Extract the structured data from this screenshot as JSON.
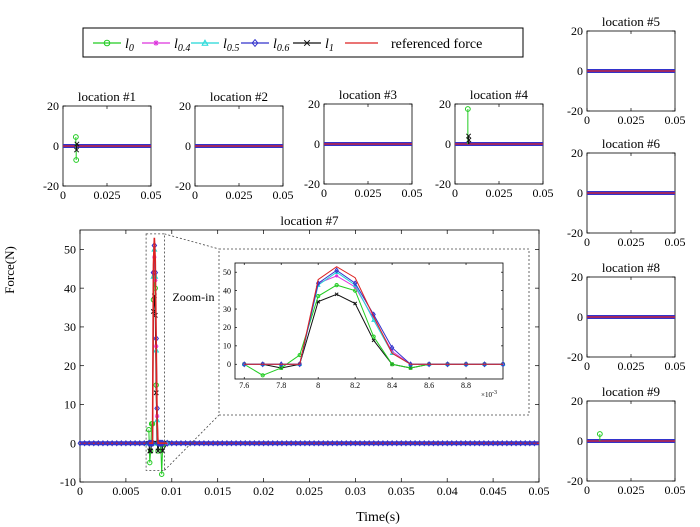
{
  "chart_data": {
    "type": "line",
    "y_axis_label": "Force(N)",
    "x_axis_label": "Time(s)",
    "legend": {
      "placement": "top-left",
      "entries": [
        {
          "label": "l",
          "subscript": "0",
          "color": "#22cc22",
          "marker": "circle"
        },
        {
          "label": "l",
          "subscript": "0.4",
          "color": "#dd33dd",
          "marker": "star"
        },
        {
          "label": "l",
          "subscript": "0.5",
          "color": "#22d8d8",
          "marker": "triangle"
        },
        {
          "label": "l",
          "subscript": "0.6",
          "color": "#3333cc",
          "marker": "diamond"
        },
        {
          "label": "l",
          "subscript": "1",
          "color": "#111111",
          "marker": "x"
        },
        {
          "label": "referenced force",
          "color": "#dd2222",
          "marker": "none"
        }
      ]
    },
    "small_panels": [
      {
        "title": "location #1",
        "xlim": [
          0,
          0.05
        ],
        "ylim": [
          -20,
          20
        ],
        "xticks": [
          "0",
          "0.025",
          "0.05"
        ],
        "yticks": [
          "-20",
          "0",
          "20"
        ],
        "spikes": {
          "l0": [
            4.5,
            -7
          ],
          "l1": [
            -2,
            1
          ]
        }
      },
      {
        "title": "location #2",
        "xlim": [
          0,
          0.05
        ],
        "ylim": [
          -20,
          20
        ],
        "xticks": [
          "0",
          "0.025",
          "0.05"
        ],
        "yticks": [
          "-20",
          "0",
          "20"
        ],
        "spikes": {}
      },
      {
        "title": "location #3",
        "xlim": [
          0,
          0.05
        ],
        "ylim": [
          -20,
          20
        ],
        "xticks": [
          "0",
          "0.025",
          "0.05"
        ],
        "yticks": [
          "-20",
          "0",
          "20"
        ],
        "spikes": {}
      },
      {
        "title": "location #4",
        "xlim": [
          0,
          0.05
        ],
        "ylim": [
          -20,
          20
        ],
        "xticks": [
          "0",
          "0.025",
          "0.05"
        ],
        "yticks": [
          "-20",
          "0",
          "20"
        ],
        "spikes": {
          "l0": [
            17.5
          ],
          "l1": [
            4,
            2
          ]
        }
      },
      {
        "title": "location #5",
        "xlim": [
          0,
          0.05
        ],
        "ylim": [
          -20,
          20
        ],
        "xticks": [
          "0",
          "0.025",
          "0.05"
        ],
        "yticks": [
          "-20",
          "0",
          "20"
        ],
        "spikes": {}
      },
      {
        "title": "location #6",
        "xlim": [
          0,
          0.05
        ],
        "ylim": [
          -20,
          20
        ],
        "xticks": [
          "0",
          "0.025",
          "0.05"
        ],
        "yticks": [
          "-20",
          "0",
          "20"
        ],
        "spikes": {}
      },
      {
        "title": "location #8",
        "xlim": [
          0,
          0.05
        ],
        "ylim": [
          -20,
          20
        ],
        "xticks": [
          "0",
          "0.025",
          "0.05"
        ],
        "yticks": [
          "-20",
          "0",
          "20"
        ],
        "spikes": {}
      },
      {
        "title": "location #9",
        "xlim": [
          0,
          0.05
        ],
        "ylim": [
          -20,
          20
        ],
        "xticks": [
          "0",
          "0.025",
          "0.05"
        ],
        "yticks": [
          "-20",
          "0",
          "20"
        ],
        "spikes": {
          "l0": [
            3.5
          ]
        }
      }
    ],
    "main_panel": {
      "title": "location #7",
      "xlim": [
        0,
        0.05
      ],
      "ylim": [
        -10,
        55
      ],
      "xticks": [
        "0",
        "0.005",
        "0.01",
        "0.015",
        "0.02",
        "0.025",
        "0.03",
        "0.035",
        "0.04",
        "0.045",
        "0.05"
      ],
      "yticks": [
        "-10",
        "0",
        "10",
        "20",
        "30",
        "40",
        "50"
      ],
      "annotation": "Zoom-in"
    },
    "inset": {
      "xlim": [
        7.55,
        9.0
      ],
      "ylim": [
        -8,
        55
      ],
      "xticks": [
        "7.6",
        "7.8",
        "8",
        "8.2",
        "8.4",
        "8.6",
        "8.8"
      ],
      "yticks": [
        "0",
        "10",
        "20",
        "30",
        "40",
        "50"
      ],
      "exponent_label": "×10",
      "exponent_power": "-3",
      "x": [
        7.6,
        7.7,
        7.8,
        7.9,
        8.0,
        8.1,
        8.2,
        8.3,
        8.4,
        8.5,
        8.6,
        8.7,
        8.8,
        8.9,
        9.0
      ],
      "series": [
        {
          "key": "ref",
          "values": [
            0,
            0,
            0,
            0,
            46,
            53,
            47,
            26,
            6,
            0,
            0,
            0,
            0,
            0,
            0
          ]
        },
        {
          "key": "l06",
          "values": [
            0,
            0,
            0,
            0,
            44,
            51,
            44,
            27,
            9,
            0,
            0,
            0,
            0,
            0,
            0
          ]
        },
        {
          "key": "l05",
          "values": [
            0,
            0,
            0,
            0,
            43,
            50,
            43,
            24,
            6,
            0,
            0,
            0,
            0,
            0,
            0
          ]
        },
        {
          "key": "l04",
          "values": [
            0,
            0,
            0,
            0,
            44,
            48,
            42,
            25,
            7,
            0,
            0,
            0,
            0,
            0,
            0
          ]
        },
        {
          "key": "l0",
          "values": [
            0,
            -6,
            -2,
            5,
            37,
            43,
            40,
            15,
            0,
            -2,
            0,
            0,
            0,
            0,
            0
          ]
        },
        {
          "key": "l1",
          "values": [
            0,
            0,
            -2,
            0,
            34,
            38,
            33,
            13,
            0,
            -2,
            0,
            0,
            0,
            0,
            0
          ]
        }
      ]
    },
    "main_spike": {
      "t": [
        0.0075,
        0.0076,
        0.0077,
        0.0078,
        0.0079,
        0.008,
        0.0081,
        0.0082,
        0.0083,
        0.0084,
        0.0085,
        0.0086,
        0.0087,
        0.0088,
        0.0089,
        0.009,
        0.0095
      ],
      "series": [
        {
          "key": "ref",
          "values": [
            0,
            0,
            0,
            0,
            0,
            46,
            53,
            47,
            26,
            6,
            0,
            0,
            0,
            0,
            0,
            0,
            0
          ]
        },
        {
          "key": "l06",
          "values": [
            0,
            0,
            0,
            0,
            0,
            44,
            51,
            44,
            27,
            9,
            0,
            0,
            0,
            0,
            0,
            0,
            0
          ]
        },
        {
          "key": "l05",
          "values": [
            0,
            0,
            0,
            0,
            0,
            43,
            50,
            43,
            24,
            6,
            0,
            0,
            0,
            0,
            0,
            0,
            0
          ]
        },
        {
          "key": "l04",
          "values": [
            0,
            0,
            0,
            0,
            0,
            44,
            48,
            42,
            25,
            7,
            0,
            0,
            0,
            0,
            0,
            0,
            0
          ]
        },
        {
          "key": "l0",
          "values": [
            3.5,
            -5,
            -2,
            5,
            5,
            37,
            43,
            40,
            15,
            0,
            -2,
            0,
            0,
            0,
            -8,
            -1,
            0
          ]
        },
        {
          "key": "l1",
          "values": [
            0,
            -2,
            -2,
            0,
            0,
            34,
            38,
            33,
            13,
            0,
            -2,
            0,
            0,
            0,
            0,
            -2,
            0
          ]
        }
      ]
    }
  }
}
